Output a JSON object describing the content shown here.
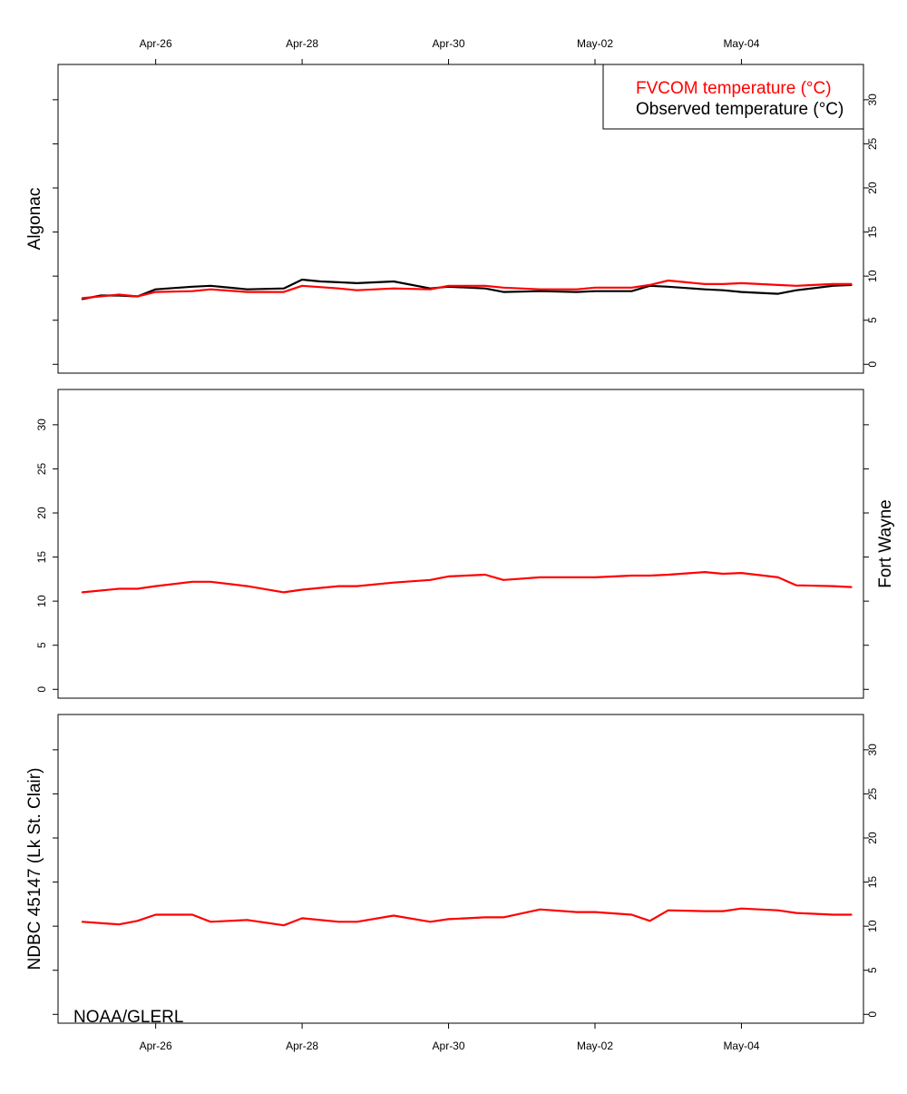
{
  "chart_data": {
    "type": "line",
    "x_axis": {
      "type": "date",
      "range": [
        "2018-04-24T16:00",
        "2018-05-05T16:00"
      ],
      "ticks": [
        "Apr-26",
        "Apr-28",
        "Apr-30",
        "May-02",
        "May-04"
      ],
      "tick_dates": [
        "2018-04-26",
        "2018-04-28",
        "2018-04-30",
        "2018-05-02",
        "2018-05-04"
      ],
      "top_ticks_shown": true,
      "bottom_ticks_shown": true
    },
    "y_ticks": [
      "0",
      "5",
      "10",
      "15",
      "20",
      "25",
      "30"
    ],
    "ylim": [
      -1,
      34
    ],
    "grid": false,
    "legend": {
      "position": "top-right",
      "entries": [
        {
          "label": "FVCOM temperature (°C)",
          "color": "#ff0000"
        },
        {
          "label": "Observed temperature (°C)",
          "color": "#000000"
        }
      ]
    },
    "credit": "NOAA/GLERL",
    "panels": [
      {
        "label": "Algonac",
        "label_side": "left",
        "ytick_side": "right",
        "series": [
          {
            "name": "FVCOM temperature (°C)",
            "color": "#ff0000",
            "points": [
              [
                "2018-04-25T00:00",
                7.5
              ],
              [
                "2018-04-25T12:00",
                7.9
              ],
              [
                "2018-04-25T18:00",
                7.7
              ],
              [
                "2018-04-26T00:00",
                8.2
              ],
              [
                "2018-04-26T12:00",
                8.3
              ],
              [
                "2018-04-26T18:00",
                8.5
              ],
              [
                "2018-04-27T06:00",
                8.2
              ],
              [
                "2018-04-27T18:00",
                8.2
              ],
              [
                "2018-04-28T00:00",
                8.9
              ],
              [
                "2018-04-28T12:00",
                8.6
              ],
              [
                "2018-04-28T18:00",
                8.4
              ],
              [
                "2018-04-29T06:00",
                8.6
              ],
              [
                "2018-04-29T18:00",
                8.5
              ],
              [
                "2018-04-30T00:00",
                8.9
              ],
              [
                "2018-04-30T12:00",
                8.9
              ],
              [
                "2018-04-30T18:00",
                8.7
              ],
              [
                "2018-05-01T06:00",
                8.5
              ],
              [
                "2018-05-01T18:00",
                8.5
              ],
              [
                "2018-05-02T00:00",
                8.7
              ],
              [
                "2018-05-02T12:00",
                8.7
              ],
              [
                "2018-05-02T18:00",
                9.0
              ],
              [
                "2018-05-03T00:00",
                9.5
              ],
              [
                "2018-05-03T12:00",
                9.1
              ],
              [
                "2018-05-03T18:00",
                9.1
              ],
              [
                "2018-05-04T00:00",
                9.2
              ],
              [
                "2018-05-04T12:00",
                9.0
              ],
              [
                "2018-05-04T18:00",
                8.9
              ],
              [
                "2018-05-05T06:00",
                9.1
              ],
              [
                "2018-05-05T12:00",
                9.1
              ]
            ]
          },
          {
            "name": "Observed temperature (°C)",
            "color": "#000000",
            "points": [
              [
                "2018-04-25T00:00",
                7.4
              ],
              [
                "2018-04-25T06:00",
                7.8
              ],
              [
                "2018-04-25T12:00",
                7.8
              ],
              [
                "2018-04-25T18:00",
                7.7
              ],
              [
                "2018-04-26T00:00",
                8.5
              ],
              [
                "2018-04-26T12:00",
                8.8
              ],
              [
                "2018-04-26T18:00",
                8.9
              ],
              [
                "2018-04-27T06:00",
                8.5
              ],
              [
                "2018-04-27T18:00",
                8.6
              ],
              [
                "2018-04-28T00:00",
                9.6
              ],
              [
                "2018-04-28T06:00",
                9.4
              ],
              [
                "2018-04-28T12:00",
                9.3
              ],
              [
                "2018-04-28T18:00",
                9.2
              ],
              [
                "2018-04-29T06:00",
                9.4
              ],
              [
                "2018-04-29T18:00",
                8.6
              ],
              [
                "2018-04-30T00:00",
                8.8
              ],
              [
                "2018-04-30T12:00",
                8.6
              ],
              [
                "2018-04-30T18:00",
                8.2
              ],
              [
                "2018-05-01T06:00",
                8.3
              ],
              [
                "2018-05-01T18:00",
                8.2
              ],
              [
                "2018-05-02T00:00",
                8.3
              ],
              [
                "2018-05-02T12:00",
                8.3
              ],
              [
                "2018-05-02T18:00",
                8.9
              ],
              [
                "2018-05-03T00:00",
                8.8
              ],
              [
                "2018-05-03T12:00",
                8.5
              ],
              [
                "2018-05-03T18:00",
                8.4
              ],
              [
                "2018-05-04T00:00",
                8.2
              ],
              [
                "2018-05-04T12:00",
                8.0
              ],
              [
                "2018-05-04T18:00",
                8.4
              ],
              [
                "2018-05-05T06:00",
                8.9
              ],
              [
                "2018-05-05T12:00",
                9.0
              ]
            ]
          }
        ]
      },
      {
        "label": "Fort Wayne",
        "label_side": "right",
        "ytick_side": "left",
        "series": [
          {
            "name": "FVCOM temperature (°C)",
            "color": "#ff0000",
            "points": [
              [
                "2018-04-25T00:00",
                11.0
              ],
              [
                "2018-04-25T12:00",
                11.4
              ],
              [
                "2018-04-25T18:00",
                11.4
              ],
              [
                "2018-04-26T00:00",
                11.7
              ],
              [
                "2018-04-26T12:00",
                12.2
              ],
              [
                "2018-04-26T18:00",
                12.2
              ],
              [
                "2018-04-27T06:00",
                11.7
              ],
              [
                "2018-04-27T18:00",
                11.0
              ],
              [
                "2018-04-28T00:00",
                11.3
              ],
              [
                "2018-04-28T12:00",
                11.7
              ],
              [
                "2018-04-28T18:00",
                11.7
              ],
              [
                "2018-04-29T06:00",
                12.1
              ],
              [
                "2018-04-29T18:00",
                12.4
              ],
              [
                "2018-04-30T00:00",
                12.8
              ],
              [
                "2018-04-30T12:00",
                13.0
              ],
              [
                "2018-04-30T18:00",
                12.4
              ],
              [
                "2018-05-01T06:00",
                12.7
              ],
              [
                "2018-05-01T18:00",
                12.7
              ],
              [
                "2018-05-02T00:00",
                12.7
              ],
              [
                "2018-05-02T12:00",
                12.9
              ],
              [
                "2018-05-02T18:00",
                12.9
              ],
              [
                "2018-05-03T00:00",
                13.0
              ],
              [
                "2018-05-03T12:00",
                13.3
              ],
              [
                "2018-05-03T18:00",
                13.1
              ],
              [
                "2018-05-04T00:00",
                13.2
              ],
              [
                "2018-05-04T12:00",
                12.7
              ],
              [
                "2018-05-04T18:00",
                11.8
              ],
              [
                "2018-05-05T06:00",
                11.7
              ],
              [
                "2018-05-05T12:00",
                11.6
              ]
            ]
          }
        ]
      },
      {
        "label": "NDBC 45147 (Lk St. Clair)",
        "label_side": "left",
        "ytick_side": "right",
        "series": [
          {
            "name": "FVCOM temperature (°C)",
            "color": "#ff0000",
            "points": [
              [
                "2018-04-25T00:00",
                10.5
              ],
              [
                "2018-04-25T12:00",
                10.2
              ],
              [
                "2018-04-25T18:00",
                10.6
              ],
              [
                "2018-04-26T00:00",
                11.3
              ],
              [
                "2018-04-26T12:00",
                11.3
              ],
              [
                "2018-04-26T18:00",
                10.5
              ],
              [
                "2018-04-27T06:00",
                10.7
              ],
              [
                "2018-04-27T18:00",
                10.1
              ],
              [
                "2018-04-28T00:00",
                10.9
              ],
              [
                "2018-04-28T12:00",
                10.5
              ],
              [
                "2018-04-28T18:00",
                10.5
              ],
              [
                "2018-04-29T06:00",
                11.2
              ],
              [
                "2018-04-29T18:00",
                10.5
              ],
              [
                "2018-04-30T00:00",
                10.8
              ],
              [
                "2018-04-30T12:00",
                11.0
              ],
              [
                "2018-04-30T18:00",
                11.0
              ],
              [
                "2018-05-01T06:00",
                11.9
              ],
              [
                "2018-05-01T18:00",
                11.6
              ],
              [
                "2018-05-02T00:00",
                11.6
              ],
              [
                "2018-05-02T12:00",
                11.3
              ],
              [
                "2018-05-02T18:00",
                10.6
              ],
              [
                "2018-05-03T00:00",
                11.8
              ],
              [
                "2018-05-03T12:00",
                11.7
              ],
              [
                "2018-05-03T18:00",
                11.7
              ],
              [
                "2018-05-04T00:00",
                12.0
              ],
              [
                "2018-05-04T12:00",
                11.8
              ],
              [
                "2018-05-04T18:00",
                11.5
              ],
              [
                "2018-05-05T06:00",
                11.3
              ],
              [
                "2018-05-05T12:00",
                11.3
              ]
            ]
          }
        ]
      }
    ]
  }
}
